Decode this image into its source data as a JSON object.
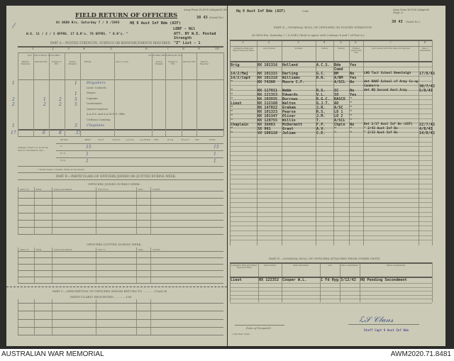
{
  "left_page": {
    "form_no": "Army Form W.3008 (Adapted) (Page 1)",
    "serial": "38 43",
    "serial_label": "(Serial No.)",
    "title": "FIELD RETURN OF OFFICERS",
    "date_line": "At 0600 Hrs. Saturday 7 / 8 /1943",
    "unit": "HQ 9 Aust Inf Bde (AIF)",
    "lobf": "LOBF - Nil",
    "we_line": "W.E. 11 / 2 / 3   OFFRS. 17   O.R's. 78   OFFRS. \"   O.R's. \"",
    "att_note": "ATT. BY W.E. Posted Strength",
    "list": "\"Z\" List - 1",
    "part_a": "PART A.—POSTED STRENGTH, SURPLUS OR REINFORCEMENTS REQUIRED",
    "col_numbers": [
      "1",
      "2",
      "3",
      "4",
      "5",
      "6",
      "7",
      "8",
      "9",
      "10"
    ],
    "we_header": "W.E. EXCLUDING ATTACHED",
    "attached_header": "ATTACHED REQUIRED BY W.E.",
    "subheaders": [
      "Reinf'ts Required",
      "Deficient W.E.",
      "Surplus to W.E.",
      "Posted Strength",
      "DETAIL",
      "Arm or Corps",
      "Posted Strength",
      "Surplus to W.E.",
      "Deficient W.E.",
      "Reinf'ts Required"
    ],
    "ranks": [
      "Brigadiers",
      "Lieut.-Colonels",
      "Majors",
      "Captains",
      "Lieutenants",
      "Quarter-masters",
      "A.A.N.S. and A.A.M.W.S. Offrs",
      "Civilians Counting",
      "Chaplains"
    ],
    "posted": [
      "1",
      "",
      "1",
      "5",
      "5",
      "",
      "",
      "",
      "3"
    ],
    "deficient": [
      "",
      "",
      "",
      "1",
      "2"
    ],
    "surplus": [
      "",
      "",
      "",
      "2",
      "2"
    ],
    "reinf": [
      "1",
      "",
      "",
      "2",
      "2",
      "",
      "",
      "",
      "1"
    ],
    "totals": [
      "17",
      "6",
      "8",
      "15"
    ],
    "services": [
      "ARMY",
      "R.A.F.",
      "A.W.A.S.",
      "A.A.N.S.",
      "A.A.M.W.S.",
      "CHS.",
      "R.A.N.",
      "R.A.A.F.",
      "W.R.",
      "TOTAL"
    ],
    "summary_rows": [
      {
        "label": "A",
        "army": "15",
        "total": "15"
      },
      {
        "label": "E (1)",
        "army": "1",
        "total": "1"
      },
      {
        "label": "E (2)",
        "army": "1",
        "total": "1"
      }
    ],
    "summary_note": "Analysis of Part A to be shown here for information only ...",
    "footnote": "* Insert detail of higher ranks as necessary.",
    "part_b": "PART B.—PARTICULARS OF OFFICERS JOINED OR QUITTED DURING WEEK.",
    "joined": "OFFICERS JOINED DURING WEEK.",
    "quitted": "OFFICERS QUITTED DURING WEEK.",
    "b_cols": [
      "Army No.",
      "Rank",
      "Name and Initials",
      "Unit From",
      "Date",
      "CAUSE."
    ],
    "b_cols_q": [
      "Army No.",
      "Rank",
      "Name and Initials",
      "Unit To",
      "Date",
      "CAUSE."
    ],
    "part_c": "PART C.—DESCRIPTION OF OFFICERS WHOSE RETURN TO ............ (Unit) IS",
    "part_c2": "PARTICULARLY REQUESTED. ............194"
  },
  "right_page": {
    "unit": "Hq 9 Aust Inf Bde (AIF)",
    "unit_label": "Unit",
    "form_no": "Army Form W.3008 (Adapted) (Page 2)",
    "serial": "38 43",
    "serial_label": "(Serial No.)",
    "part_d": "PART D.—NOMINAL ROLL OF OFFICERS ON POSTED STRENGTH",
    "date_line": "At 0600 Hrs. Saturday 7 / 8 /1943   (Total to agree with Columns 4 and 7 of Part A.)",
    "col_numbers": [
      "1",
      "2",
      "3",
      "4",
      "5",
      "6",
      "7",
      "8"
    ],
    "col_heads": [
      "Substantive Rank (and Higher Temporary Rank)",
      "Army Number",
      "Surname",
      "Initials",
      "Posting",
      "Whether present with Unit",
      "If not present with Unit, state how employed",
      "Date of Detachment"
    ],
    "rows": [
      [
        "Brig",
        "NX 101316",
        "Holland",
        "A.C.S.",
        "Bde Comd",
        "Yes",
        "",
        ""
      ],
      [
        "14/2/Maj",
        "NX 101315",
        "Darling",
        "G.C.",
        "BM",
        "No",
        "LHQ Tact School Beenleigh",
        "17/8/43"
      ],
      [
        "14/2/Capt",
        "NX 101318",
        "Williams",
        "R.R.",
        "A/BM",
        "Yes",
        "",
        ""
      ],
      [
        "\"",
        "NX 74308",
        "Moore C.F.",
        "",
        "A/SCL",
        "No",
        "det RAAF School of Army Co-op Canberra",
        "30/7/43"
      ],
      [
        "\"",
        "NX 117011",
        "Webb",
        "R.S.",
        "SC",
        "No",
        "det HQ Second Aust Army",
        "5/8/43"
      ],
      [
        "\"",
        "NX 121353",
        "Edwards",
        "V.L.",
        "IO",
        "Yes",
        "",
        ""
      ],
      [
        "\"",
        "NX 103935",
        "Burrows",
        "R.G.C.",
        "RASCO",
        "\"",
        "",
        ""
      ],
      [
        "Lieut",
        "NX 112160",
        "Walton",
        "G.J.T.",
        "AO",
        "\"",
        "",
        ""
      ],
      [
        "\"",
        "NX 147022",
        "Graham",
        "J.R.",
        "A/SC",
        "\"",
        "",
        ""
      ],
      [
        "\"",
        "NX 101323",
        "Pearse",
        "R.S.",
        "LO 1",
        "\"",
        "",
        ""
      ],
      [
        "\"",
        "NX 101347",
        "Oliver",
        "J.M.",
        "LO 2",
        "\"",
        "",
        ""
      ],
      [
        "\"",
        "NX 128755",
        "Willis",
        "T.",
        "A/SCL",
        "\"",
        "",
        ""
      ],
      [
        "Chaplain",
        "NX 36983",
        "McDermott",
        "F.P.",
        "Chpln",
        "No",
        "Det 2/17 Aust Inf Bn (AIF)",
        "22/7/43"
      ],
      [
        "\"",
        "SX 961",
        "Grant",
        "A.V.",
        "\"",
        "\"",
        "\" 2/43 Aust Inf Bn",
        "4/8/43"
      ],
      [
        "\"",
        "VX 108118",
        "Julian",
        "C.E.",
        "\"",
        "\"",
        "\" 2/13 Aust Inf Bn",
        "14/8/43"
      ]
    ],
    "part_e": "PART E.—NOMINAL ROLL OF OFFICERS ATTACHED FROM OTHER UNITS.",
    "e_cols": [
      "Substantive Rank (and Higher Temporary Rank)",
      "Army Number",
      "Name and Initials",
      "Unit",
      "Date of Attachment",
      "Nature of Attachment"
    ],
    "e_rows": [
      [
        "Lieut",
        "NX 122352",
        "Cooper W.L.",
        "1 Fd Hyg",
        "3/12/42",
        "HQ Pending Secondment"
      ]
    ],
    "despatch": "Date of Despatch",
    "printer": "1,000 Pads 10/40 ...",
    "signature_title": "Staff Capt 9 Aust Inf Bde"
  },
  "caption": {
    "left": "AUSTRALIAN WAR MEMORIAL",
    "right": "AWM2020.71.8481"
  }
}
